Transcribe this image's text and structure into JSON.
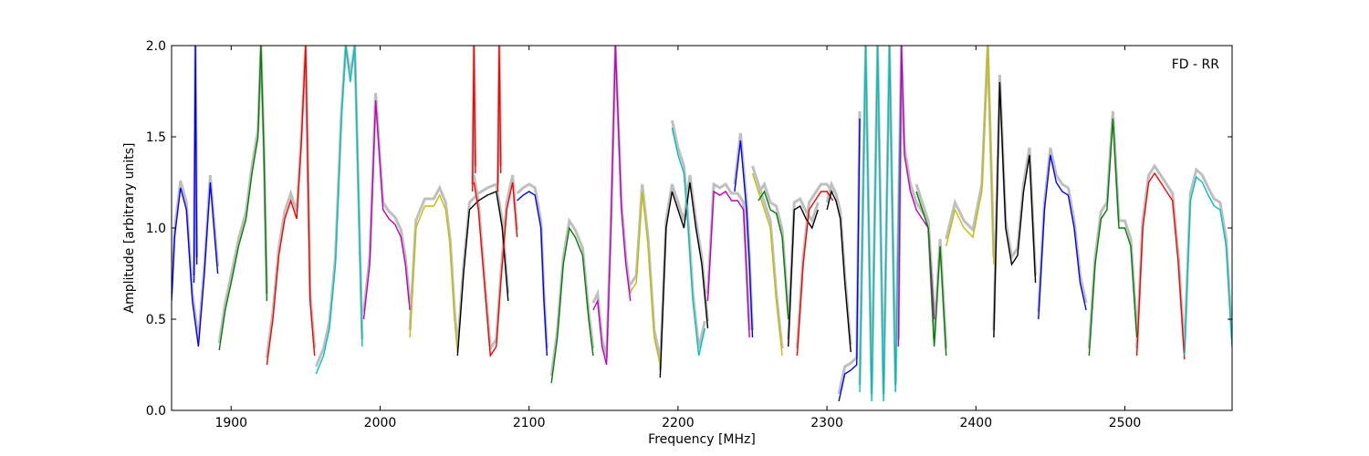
{
  "chart_data": {
    "type": "line",
    "title": "",
    "annotation": "FD - RR",
    "xlabel": "Frequency [MHz]",
    "ylabel": "Amplitude [arbitrary units]",
    "xlim": [
      1860,
      2572
    ],
    "ylim": [
      0,
      2.0
    ],
    "xticks": [
      1900,
      2000,
      2100,
      2200,
      2300,
      2400,
      2500
    ],
    "yticks": [
      0.0,
      0.5,
      1.0,
      1.5,
      2.0
    ],
    "ytick_labels": [
      "0.0",
      "0.5",
      "1.0",
      "1.5",
      "2.0"
    ],
    "grid": false,
    "legend": "none",
    "background_color": "#bfbfbf",
    "series": [
      {
        "color": "#0000ff",
        "x": [
          1860,
          1862,
          1866,
          1870,
          1874,
          1878,
          1882,
          1886,
          1889,
          1891
        ],
        "y": [
          0.6,
          0.95,
          1.22,
          1.1,
          0.6,
          0.35,
          0.75,
          1.25,
          0.95,
          0.75
        ]
      },
      {
        "color": "#0000ff",
        "x": [
          1875,
          1876,
          1877
        ],
        "y": [
          0.7,
          2.0,
          0.8
        ]
      },
      {
        "color": "#008000",
        "x": [
          1892,
          1896,
          1900,
          1905,
          1910,
          1914,
          1918,
          1920,
          1922,
          1924
        ],
        "y": [
          0.33,
          0.55,
          0.7,
          0.9,
          1.05,
          1.3,
          1.5,
          2.0,
          1.4,
          0.6
        ]
      },
      {
        "color": "#ff0000",
        "x": [
          1924,
          1928,
          1932,
          1936,
          1940,
          1944,
          1947,
          1950,
          1953,
          1956
        ],
        "y": [
          0.25,
          0.5,
          0.85,
          1.05,
          1.15,
          1.05,
          1.45,
          2.0,
          0.6,
          0.3
        ]
      },
      {
        "color": "#00bfbf",
        "x": [
          1957,
          1962,
          1966,
          1970,
          1974,
          1977,
          1980,
          1983,
          1986,
          1988
        ],
        "y": [
          0.2,
          0.3,
          0.45,
          0.8,
          1.6,
          2.0,
          1.8,
          2.0,
          1.0,
          0.35
        ]
      },
      {
        "color": "#bf00bf",
        "x": [
          1989,
          1993,
          1997,
          2002,
          2006,
          2010,
          2014,
          2017,
          2020
        ],
        "y": [
          0.5,
          0.8,
          1.7,
          1.1,
          1.05,
          1.02,
          0.95,
          0.8,
          0.55
        ]
      },
      {
        "color": "#bfbf00",
        "x": [
          2020,
          2024,
          2030,
          2036,
          2040,
          2044,
          2047,
          2050,
          2052
        ],
        "y": [
          0.4,
          1.0,
          1.12,
          1.12,
          1.18,
          1.1,
          0.9,
          0.5,
          0.32
        ]
      },
      {
        "color": "#000000",
        "x": [
          2052,
          2056,
          2060,
          2066,
          2072,
          2078,
          2082,
          2086
        ],
        "y": [
          0.3,
          0.75,
          1.1,
          1.15,
          1.18,
          1.2,
          1.0,
          0.6
        ]
      },
      {
        "color": "#ff0000",
        "x": [
          2063,
          2066,
          2070,
          2074,
          2078,
          2081,
          2085,
          2089,
          2092
        ],
        "y": [
          1.25,
          1.1,
          0.7,
          0.3,
          0.35,
          0.7,
          1.1,
          1.25,
          0.95
        ]
      },
      {
        "color": "#ff0000",
        "x": [
          2062,
          2063,
          2064
        ],
        "y": [
          1.2,
          2.0,
          1.3
        ]
      },
      {
        "color": "#ff0000",
        "x": [
          2079,
          2080,
          2081
        ],
        "y": [
          1.2,
          2.0,
          1.3
        ]
      },
      {
        "color": "#0000ff",
        "x": [
          2092,
          2096,
          2100,
          2104,
          2108,
          2110,
          2112
        ],
        "y": [
          1.15,
          1.18,
          1.2,
          1.18,
          1.0,
          0.6,
          0.3
        ]
      },
      {
        "color": "#008000",
        "x": [
          2115,
          2119,
          2123,
          2127,
          2131,
          2136,
          2140,
          2143
        ],
        "y": [
          0.15,
          0.4,
          0.8,
          1.0,
          0.95,
          0.85,
          0.5,
          0.3
        ]
      },
      {
        "color": "#bf00bf",
        "x": [
          2143,
          2146,
          2149,
          2152,
          2155,
          2158,
          2162,
          2165,
          2168
        ],
        "y": [
          0.55,
          0.6,
          0.35,
          0.25,
          1.0,
          2.0,
          1.1,
          0.8,
          0.6
        ]
      },
      {
        "color": "#bfbf00",
        "x": [
          2168,
          2172,
          2176,
          2180,
          2184,
          2188
        ],
        "y": [
          0.65,
          0.7,
          1.2,
          0.9,
          0.4,
          0.25
        ]
      },
      {
        "color": "#000000",
        "x": [
          2188,
          2192,
          2196,
          2200,
          2204,
          2208,
          2212,
          2216,
          2220
        ],
        "y": [
          0.18,
          1.0,
          1.2,
          1.1,
          1.0,
          1.25,
          1.0,
          0.8,
          0.45
        ]
      },
      {
        "color": "#00bfbf",
        "x": [
          2196,
          2200,
          2204,
          2206,
          2210,
          2214,
          2218
        ],
        "y": [
          1.55,
          1.4,
          1.3,
          1.1,
          0.6,
          0.3,
          0.45
        ]
      },
      {
        "color": "#bf00bf",
        "x": [
          2220,
          2224,
          2228,
          2232,
          2236,
          2240,
          2244,
          2248
        ],
        "y": [
          0.6,
          1.2,
          1.18,
          1.2,
          1.15,
          1.15,
          1.1,
          0.4
        ]
      },
      {
        "color": "#0000ff",
        "x": [
          2238,
          2242,
          2246,
          2248,
          2250
        ],
        "y": [
          1.2,
          1.48,
          1.1,
          0.8,
          0.4
        ]
      },
      {
        "color": "#bfbf00",
        "x": [
          2250,
          2254,
          2258,
          2262,
          2266,
          2270
        ],
        "y": [
          1.3,
          1.2,
          1.1,
          1.0,
          0.6,
          0.3
        ]
      },
      {
        "color": "#008000",
        "x": [
          2254,
          2258,
          2262,
          2266,
          2270,
          2274
        ],
        "y": [
          1.15,
          1.2,
          1.1,
          1.08,
          0.95,
          0.5
        ]
      },
      {
        "color": "#000000",
        "x": [
          2274,
          2278,
          2282,
          2286,
          2290,
          2294
        ],
        "y": [
          0.35,
          1.1,
          1.12,
          1.05,
          1.0,
          1.1
        ]
      },
      {
        "color": "#ff0000",
        "x": [
          2280,
          2284,
          2288,
          2292,
          2296,
          2300,
          2304
        ],
        "y": [
          0.3,
          0.8,
          1.1,
          1.15,
          1.2,
          1.2,
          1.15
        ]
      },
      {
        "color": "#000000",
        "x": [
          2300,
          2303,
          2306,
          2309,
          2312,
          2316
        ],
        "y": [
          1.1,
          1.2,
          1.15,
          1.05,
          0.7,
          0.32
        ]
      },
      {
        "color": "#0000ff",
        "x": [
          2308,
          2312,
          2316,
          2320,
          2322
        ],
        "y": [
          0.05,
          0.2,
          0.22,
          0.25,
          1.6
        ]
      },
      {
        "color": "#00bfbf",
        "x": [
          2322,
          2326,
          2330,
          2334,
          2338,
          2342,
          2346,
          2350
        ],
        "y": [
          0.1,
          2.0,
          0.05,
          2.0,
          0.05,
          2.0,
          0.1,
          2.0
        ]
      },
      {
        "color": "#bf00bf",
        "x": [
          2348,
          2350,
          2352,
          2356,
          2360,
          2364,
          2368,
          2372
        ],
        "y": [
          0.35,
          2.0,
          1.4,
          1.2,
          1.1,
          1.05,
          1.0,
          0.5
        ]
      },
      {
        "color": "#008000",
        "x": [
          2360,
          2364,
          2368,
          2372,
          2376,
          2380
        ],
        "y": [
          1.2,
          1.1,
          1.0,
          0.35,
          0.9,
          0.3
        ]
      },
      {
        "color": "#bfbf00",
        "x": [
          2380,
          2386,
          2392,
          2398,
          2404,
          2408,
          2412
        ],
        "y": [
          0.9,
          1.1,
          1.0,
          0.95,
          1.2,
          2.0,
          0.8
        ]
      },
      {
        "color": "#000000",
        "x": [
          2412,
          2416,
          2420,
          2424,
          2428,
          2432,
          2436,
          2440
        ],
        "y": [
          0.4,
          1.8,
          1.0,
          0.8,
          0.85,
          1.2,
          1.4,
          0.7
        ]
      },
      {
        "color": "#0000ff",
        "x": [
          2442,
          2446,
          2450,
          2454,
          2458,
          2462,
          2466,
          2470,
          2474
        ],
        "y": [
          0.5,
          1.1,
          1.4,
          1.25,
          1.2,
          1.18,
          1.0,
          0.7,
          0.55
        ]
      },
      {
        "color": "#008000",
        "x": [
          2476,
          2480,
          2484,
          2488,
          2492,
          2496,
          2500,
          2504,
          2508
        ],
        "y": [
          0.3,
          0.8,
          1.05,
          1.1,
          1.6,
          1.0,
          1.0,
          0.9,
          0.4
        ]
      },
      {
        "color": "#ff0000",
        "x": [
          2508,
          2512,
          2516,
          2520,
          2524,
          2528,
          2532,
          2536,
          2540
        ],
        "y": [
          0.3,
          1.0,
          1.25,
          1.3,
          1.25,
          1.2,
          1.15,
          0.8,
          0.28
        ]
      },
      {
        "color": "#00bfbf",
        "x": [
          2540,
          2544,
          2548,
          2552,
          2556,
          2560,
          2564,
          2568,
          2572
        ],
        "y": [
          0.3,
          1.15,
          1.28,
          1.25,
          1.18,
          1.12,
          1.1,
          0.9,
          0.35
        ]
      }
    ]
  }
}
